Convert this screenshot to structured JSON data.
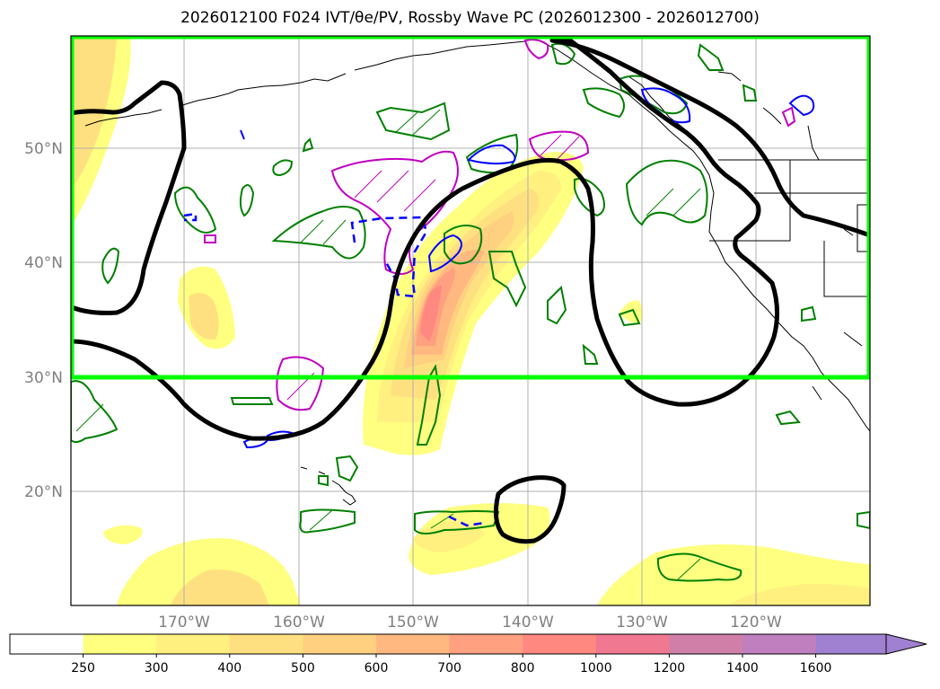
{
  "title": "2026012100 F024 IVT/θe/PV, Rossby Wave PC (2026012300 - 2026012700)",
  "map": {
    "lat_labels": [
      "50°N",
      "40°N",
      "30°N",
      "20°N"
    ],
    "lon_labels": [
      "170°W",
      "160°W",
      "150°W",
      "140°W",
      "130°W",
      "120°W"
    ]
  },
  "colorbar": {
    "labels": [
      "250",
      "300",
      "400",
      "500",
      "600",
      "700",
      "800",
      "1000",
      "1200",
      "1400",
      "1600"
    ],
    "colors": [
      "#ffffff",
      "#ffff80",
      "#fff080",
      "#ffe080",
      "#ffd080",
      "#ffb880",
      "#ffa080",
      "#ff8880",
      "#f07890",
      "#d080a8",
      "#c080c0",
      "#a080d0"
    ]
  },
  "styles": {
    "highlight_box_color": "#00ff00",
    "theta_contour_color": "#000000",
    "pv_green": "#008000",
    "pv_magenta": "#c000c0",
    "pv_blue": "#0000ff"
  }
}
